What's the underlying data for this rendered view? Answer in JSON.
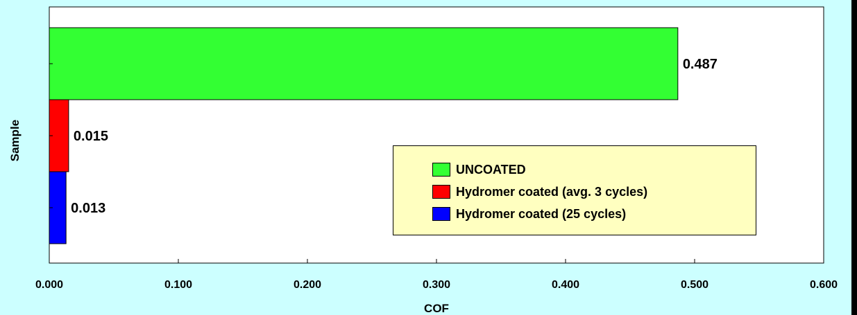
{
  "chart_data": {
    "type": "bar",
    "orientation": "horizontal",
    "xlabel": "COF",
    "ylabel": "Sample",
    "xlim": [
      0,
      0.6
    ],
    "xticks": [
      "0.000",
      "0.100",
      "0.200",
      "0.300",
      "0.400",
      "0.500",
      "0.600"
    ],
    "grid": false,
    "legend_position": "bottom-right",
    "series": [
      {
        "name": "UNCOATED",
        "value": 0.487,
        "label": "0.487",
        "color": "#33ff33"
      },
      {
        "name": "Hydromer coated  (avg. 3 cycles)",
        "value": 0.015,
        "label": "0.015",
        "color": "#ff0000"
      },
      {
        "name": "Hydromer coated  (25 cycles)",
        "value": 0.013,
        "label": "0.013",
        "color": "#0000ff"
      }
    ],
    "colors": {
      "background": "#ccffff",
      "plot_area": "#ffffff",
      "legend_bg": "#ffffc0"
    }
  }
}
